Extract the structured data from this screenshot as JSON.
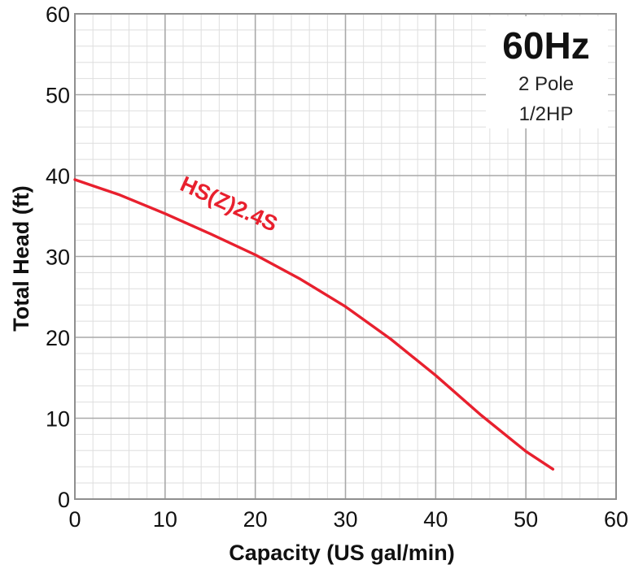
{
  "chart_data": {
    "type": "line",
    "xlabel": "Capacity (US gal/min)",
    "ylabel": "Total Head (ft)",
    "xlim": [
      0,
      60
    ],
    "ylim": [
      0,
      60
    ],
    "x_ticks": [
      "0",
      "10",
      "20",
      "30",
      "40",
      "50",
      "60"
    ],
    "y_ticks": [
      "0",
      "10",
      "20",
      "30",
      "40",
      "50",
      "60"
    ],
    "grid": true,
    "minor_grid": true,
    "info_box": {
      "frequency": "60Hz",
      "pole": "2 Pole",
      "power": "1/2HP",
      "placement": "top-right"
    },
    "series": [
      {
        "name": "HS(Z)2.4S",
        "color": "#e8202e",
        "x": [
          0,
          5,
          10,
          15,
          20,
          25,
          30,
          35,
          40,
          45,
          50,
          53
        ],
        "y": [
          39.5,
          37.6,
          35.3,
          32.8,
          30.2,
          27.2,
          23.8,
          19.8,
          15.3,
          10.4,
          5.9,
          3.7
        ]
      }
    ]
  }
}
